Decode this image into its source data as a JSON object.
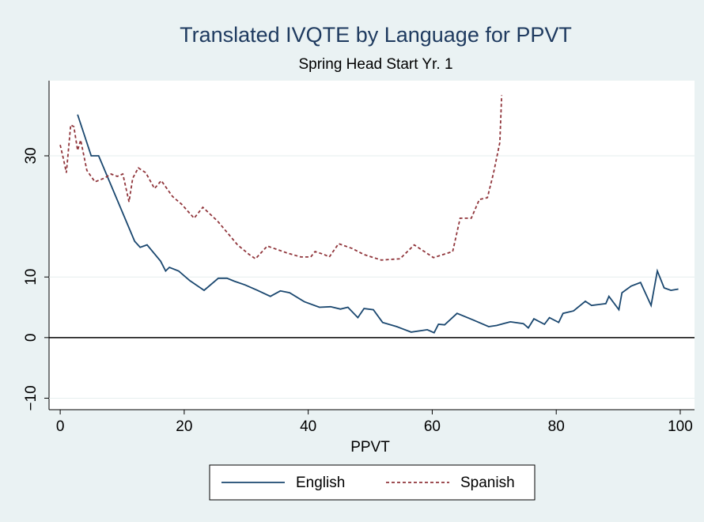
{
  "chart_data": {
    "type": "line",
    "title": "Translated IVQTE by Language for PPVT",
    "subtitle": "Spring Head Start Yr. 1",
    "x_label": "PPVT",
    "xlim": [
      -1.8,
      102.3
    ],
    "ylim": [
      -11.9,
      42.4
    ],
    "xticks": [
      0,
      20,
      40,
      60,
      80,
      100
    ],
    "yticks": [
      {
        "value": -10,
        "label": "−10"
      },
      0,
      10,
      30
    ],
    "grid": true,
    "legend_position": "bottom",
    "series": [
      {
        "name": "English",
        "color": "#1a476f",
        "dash": "solid",
        "x": [
          2.8,
          5.0,
          6.2,
          12.0,
          12.9,
          14.0,
          16.2,
          17.0,
          17.6,
          19.1,
          20.9,
          23.2,
          25.5,
          26.9,
          28.1,
          29.8,
          31.8,
          33.9,
          35.5,
          37.0,
          39.4,
          41.8,
          43.6,
          45.2,
          46.4,
          48.0,
          49.0,
          50.5,
          52.0,
          54.3,
          56.6,
          59.2,
          60.3,
          61.0,
          62.0,
          64.0,
          66.6,
          69.1,
          70.4,
          72.6,
          74.7,
          75.5,
          76.4,
          78.1,
          78.9,
          80.4,
          81.1,
          82.8,
          84.7,
          85.7,
          88.0,
          88.5,
          90.1,
          90.6,
          92.1,
          93.6,
          95.3,
          96.3,
          97.4,
          98.5,
          99.7
        ],
        "values": [
          36.8,
          30.0,
          30.0,
          15.9,
          14.9,
          15.3,
          12.6,
          11.0,
          11.6,
          11.0,
          9.4,
          7.8,
          9.8,
          9.8,
          9.3,
          8.7,
          7.8,
          6.8,
          7.7,
          7.4,
          5.9,
          5.0,
          5.1,
          4.7,
          5.0,
          3.3,
          4.8,
          4.6,
          2.5,
          1.8,
          0.9,
          1.3,
          0.8,
          2.2,
          2.1,
          4.0,
          2.9,
          1.8,
          2.0,
          2.6,
          2.3,
          1.6,
          3.1,
          2.2,
          3.3,
          2.5,
          4.0,
          4.4,
          6.0,
          5.3,
          5.6,
          6.8,
          4.6,
          7.4,
          8.5,
          9.1,
          5.3,
          11.0,
          8.2,
          7.8,
          8.0
        ]
      },
      {
        "name": "Spanish",
        "color": "#90353b",
        "dash": "dashed",
        "x": [
          0,
          0.5,
          1.0,
          1.7,
          2.2,
          2.8,
          3.3,
          4.3,
          5.6,
          7.1,
          8.2,
          9.2,
          10.1,
          11.1,
          11.7,
          12.6,
          13.8,
          15.2,
          16.3,
          18.1,
          19.6,
          21.6,
          23.0,
          25.4,
          28.6,
          30.5,
          31.5,
          33.4,
          36.5,
          38.8,
          40.4,
          41.1,
          42.6,
          43.4,
          44.9,
          47.1,
          49.0,
          51.8,
          54.8,
          57.1,
          60.2,
          63.3,
          64.5,
          66.3,
          67.6,
          68.9,
          69.9,
          70.9,
          71.2
        ],
        "values": [
          31.8,
          29.6,
          27.2,
          35.1,
          34.8,
          30.9,
          32.6,
          27.6,
          25.7,
          26.3,
          27.0,
          26.6,
          27.0,
          22.4,
          26.3,
          28.0,
          27.2,
          24.6,
          25.9,
          23.3,
          22.0,
          19.7,
          21.5,
          19.2,
          15.3,
          13.7,
          13.0,
          15.1,
          14.0,
          13.3,
          13.3,
          14.2,
          13.7,
          13.3,
          15.5,
          14.7,
          13.7,
          12.8,
          13.0,
          15.3,
          13.2,
          14.2,
          19.7,
          19.7,
          22.8,
          23.1,
          27.2,
          32.2,
          40.0
        ]
      }
    ]
  }
}
